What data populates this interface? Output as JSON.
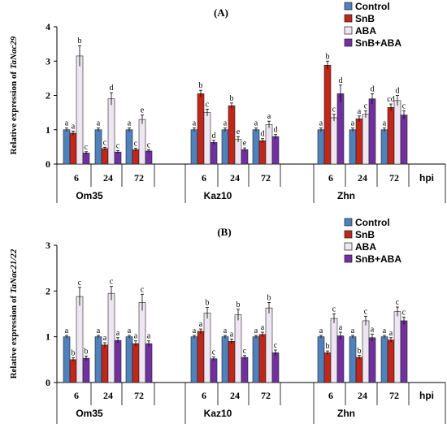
{
  "chart_data": [
    {
      "type": "bar",
      "title": "(A)",
      "ylabel_pre": "Relative expression of ",
      "ylabel_gene": "TaNac29",
      "yticks": [
        "0",
        "1",
        "2",
        "3",
        "4"
      ],
      "ylim": [
        0,
        4
      ],
      "legend": [
        "Control",
        "SnB",
        "ABA",
        "SnB+ABA"
      ],
      "colors": [
        "#4f81bd",
        "#c0261a",
        "#eee6f0",
        "#7030a0"
      ],
      "groups": [
        "Om35",
        "Kaz10",
        "Zhn"
      ],
      "times": [
        "6",
        "24",
        "72"
      ],
      "hpi_label": "hpi",
      "values": [
        [
          [
            1.0,
            0.9,
            3.15,
            0.32
          ],
          [
            1.0,
            0.45,
            1.9,
            0.35
          ],
          [
            1.0,
            0.42,
            1.3,
            0.38
          ]
        ],
        [
          [
            1.0,
            2.05,
            1.5,
            0.63
          ],
          [
            1.0,
            1.7,
            0.72,
            0.42
          ],
          [
            1.0,
            0.68,
            1.15,
            0.8
          ]
        ],
        [
          [
            1.0,
            2.88,
            1.35,
            2.05
          ],
          [
            1.0,
            1.32,
            1.45,
            1.9
          ],
          [
            1.0,
            1.65,
            1.85,
            1.43
          ]
        ]
      ],
      "errors": [
        [
          [
            0.05,
            0.06,
            0.3,
            0.04
          ],
          [
            0.05,
            0.04,
            0.18,
            0.04
          ],
          [
            0.05,
            0.04,
            0.13,
            0.04
          ]
        ],
        [
          [
            0.05,
            0.1,
            0.1,
            0.06
          ],
          [
            0.05,
            0.08,
            0.08,
            0.05
          ],
          [
            0.05,
            0.06,
            0.1,
            0.06
          ]
        ],
        [
          [
            0.05,
            0.12,
            0.1,
            0.25
          ],
          [
            0.05,
            0.08,
            0.1,
            0.15
          ],
          [
            0.05,
            0.1,
            0.15,
            0.12
          ]
        ]
      ],
      "sig": [
        [
          [
            "a",
            "a",
            "b",
            "c"
          ],
          [
            "a",
            "c",
            "d",
            "c"
          ],
          [
            "a",
            "c",
            "e",
            "c"
          ]
        ],
        [
          [
            "a",
            "b",
            "c",
            "d"
          ],
          [
            "a",
            "b",
            "e",
            "e"
          ],
          [
            "a",
            "d",
            "a",
            "d"
          ]
        ],
        [
          [
            "a",
            "b",
            "c",
            "d"
          ],
          [
            "a",
            "a",
            "c",
            "d"
          ],
          [
            "a",
            "cd",
            "d",
            "c"
          ]
        ]
      ]
    },
    {
      "type": "bar",
      "title": "(B)",
      "ylabel_pre": "Relative expression of ",
      "ylabel_gene": "TaNac21/22",
      "yticks": [
        "0",
        "1",
        "2",
        "3"
      ],
      "ylim": [
        0,
        3
      ],
      "legend": [
        "Control",
        "SnB",
        "ABA",
        "SnB+ABA"
      ],
      "colors": [
        "#4f81bd",
        "#c0261a",
        "#eee6f0",
        "#7030a0"
      ],
      "groups": [
        "Om35",
        "Kaz10",
        "Zhn"
      ],
      "times": [
        "6",
        "24",
        "72"
      ],
      "hpi_label": "hpi",
      "values": [
        [
          [
            1.0,
            0.5,
            1.88,
            0.53
          ],
          [
            1.0,
            0.82,
            1.95,
            0.92
          ],
          [
            1.0,
            0.85,
            1.75,
            0.85
          ]
        ],
        [
          [
            1.0,
            1.12,
            1.52,
            0.52
          ],
          [
            1.0,
            0.9,
            1.48,
            0.55
          ],
          [
            1.0,
            1.05,
            1.63,
            0.65
          ]
        ],
        [
          [
            1.0,
            0.65,
            1.4,
            1.02
          ],
          [
            1.0,
            0.55,
            1.35,
            0.98
          ],
          [
            1.0,
            0.93,
            1.55,
            1.35
          ]
        ]
      ],
      "errors": [
        [
          [
            0.03,
            0.04,
            0.2,
            0.05
          ],
          [
            0.03,
            0.05,
            0.15,
            0.06
          ],
          [
            0.03,
            0.06,
            0.18,
            0.06
          ]
        ],
        [
          [
            0.03,
            0.05,
            0.12,
            0.04
          ],
          [
            0.03,
            0.05,
            0.12,
            0.04
          ],
          [
            0.03,
            0.05,
            0.12,
            0.06
          ]
        ],
        [
          [
            0.03,
            0.04,
            0.1,
            0.08
          ],
          [
            0.03,
            0.04,
            0.1,
            0.08
          ],
          [
            0.03,
            0.05,
            0.1,
            0.08
          ]
        ]
      ],
      "sig": [
        [
          [
            "a",
            "b",
            "c",
            "b"
          ],
          [
            "a",
            "a",
            "c",
            "a"
          ],
          [
            "a",
            "a",
            "c",
            "a"
          ]
        ],
        [
          [
            "a",
            "a",
            "b",
            "c"
          ],
          [
            "a",
            "a",
            "b",
            "c"
          ],
          [
            "a",
            "a",
            "b",
            "c"
          ]
        ],
        [
          [
            "a",
            "b",
            "c",
            "a"
          ],
          [
            "a",
            "b",
            "c",
            "a"
          ],
          [
            "a",
            "a",
            "c",
            "c"
          ]
        ]
      ]
    }
  ]
}
